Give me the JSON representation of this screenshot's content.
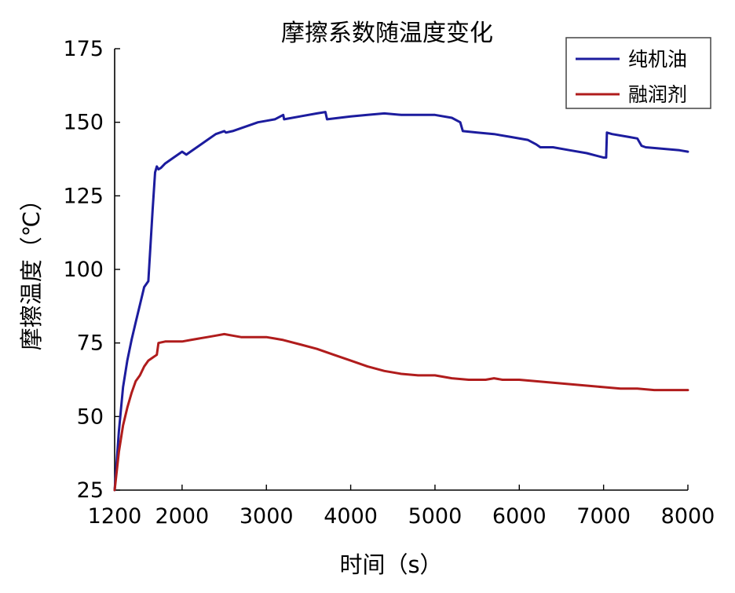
{
  "chart_data": {
    "type": "line",
    "title": "摩擦系数随温度变化",
    "xlabel": "时间（s）",
    "ylabel": "摩擦温度（℃）",
    "xlim": [
      1200,
      8000
    ],
    "ylim": [
      25,
      175
    ],
    "xticks": [
      1200,
      2000,
      3000,
      4000,
      5000,
      6000,
      7000,
      8000
    ],
    "yticks": [
      25,
      50,
      75,
      100,
      125,
      150,
      175
    ],
    "grid": false,
    "legend_position": "top-right",
    "series": [
      {
        "name": "纯机油",
        "color": "#1c1c9e",
        "x": [
          1200,
          1250,
          1300,
          1350,
          1400,
          1450,
          1500,
          1550,
          1600,
          1650,
          1680,
          1700,
          1720,
          1750,
          1800,
          1900,
          2000,
          2050,
          2100,
          2200,
          2300,
          2400,
          2500,
          2520,
          2600,
          2700,
          2800,
          2900,
          3000,
          3100,
          3200,
          3210,
          3400,
          3600,
          3700,
          3720,
          4000,
          4200,
          4400,
          4600,
          4800,
          5000,
          5200,
          5300,
          5330,
          5500,
          5700,
          5900,
          6100,
          6200,
          6250,
          6400,
          6600,
          6800,
          7000,
          7030,
          7040,
          7100,
          7300,
          7400,
          7450,
          7500,
          7700,
          7900,
          8000
        ],
        "y": [
          25,
          45,
          60,
          69,
          76,
          82,
          88,
          94,
          96,
          120,
          133,
          135,
          134,
          134.5,
          136,
          138,
          140,
          139,
          140,
          142,
          144,
          146,
          147,
          146.5,
          147,
          148,
          149,
          150,
          150.5,
          151,
          152.5,
          151,
          152,
          153,
          153.5,
          151,
          152,
          152.5,
          153,
          152.5,
          152.5,
          152.5,
          151.5,
          150,
          147,
          146.5,
          146,
          145,
          144,
          142.5,
          141.5,
          141.5,
          140.5,
          139.5,
          138,
          138,
          146.5,
          146,
          145,
          144.5,
          142,
          141.5,
          141,
          140.5,
          140
        ]
      },
      {
        "name": "融润剂",
        "color": "#b01c1c",
        "x": [
          1200,
          1250,
          1300,
          1350,
          1400,
          1450,
          1500,
          1550,
          1600,
          1650,
          1700,
          1720,
          1800,
          1900,
          2000,
          2100,
          2200,
          2300,
          2400,
          2500,
          2600,
          2700,
          2800,
          2900,
          3000,
          3100,
          3200,
          3400,
          3600,
          3800,
          4000,
          4200,
          4400,
          4600,
          4800,
          5000,
          5200,
          5400,
          5600,
          5700,
          5800,
          6000,
          6200,
          6400,
          6600,
          6800,
          7000,
          7200,
          7400,
          7600,
          7800,
          8000
        ],
        "y": [
          25,
          38,
          47,
          53,
          58,
          62,
          64,
          67,
          69,
          70,
          71,
          75,
          75.5,
          75.5,
          75.5,
          76,
          76.5,
          77,
          77.5,
          78,
          77.5,
          77,
          77,
          77,
          77,
          76.5,
          76,
          74.5,
          73,
          71,
          69,
          67,
          65.5,
          64.5,
          64,
          64,
          63,
          62.5,
          62.5,
          63,
          62.5,
          62.5,
          62,
          61.5,
          61,
          60.5,
          60,
          59.5,
          59.5,
          59,
          59,
          59
        ]
      }
    ]
  }
}
